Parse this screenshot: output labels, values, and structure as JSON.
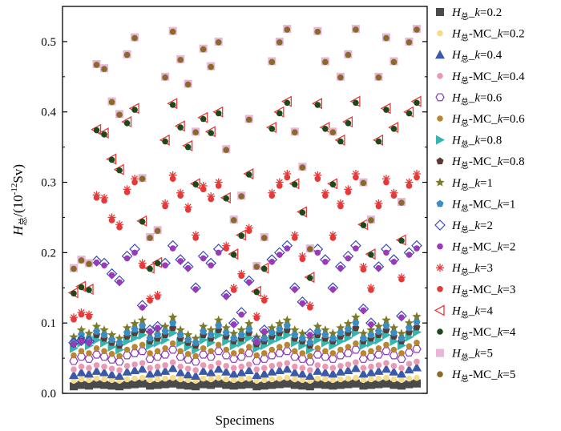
{
  "chart_data": {
    "type": "scatter",
    "title": "",
    "xlabel": "Specimens",
    "ylabel": {
      "main": "H",
      "sub": "总",
      "rest": "/(10",
      "exp": "-12",
      "unit": "Sv)"
    },
    "ylim": [
      0,
      0.55
    ],
    "yticks": [
      "0.0",
      "0.1",
      "0.2",
      "0.3",
      "0.4",
      "0.5"
    ],
    "ytick_values": [
      0,
      0.1,
      0.2,
      0.3,
      0.4,
      0.5
    ],
    "grid": false,
    "legend_position": "right",
    "specimen_count": 46,
    "series": [
      {
        "name": "H总_k=0.2",
        "label": {
          "pre": "H",
          "sub": "总",
          "post": "_",
          "k": "k",
          "val": "=0.2"
        },
        "marker": "square",
        "color": "#4a4a4a",
        "values": [
          0.01,
          0.012,
          0.011,
          0.013,
          0.012,
          0.011,
          0.01,
          0.012,
          0.013,
          0.014,
          0.011,
          0.012,
          0.013,
          0.014,
          0.012,
          0.011,
          0.01,
          0.013,
          0.012,
          0.014,
          0.012,
          0.011,
          0.012,
          0.013,
          0.01,
          0.011,
          0.012,
          0.013,
          0.014,
          0.012,
          0.011,
          0.01,
          0.013,
          0.012,
          0.011,
          0.012,
          0.013,
          0.014,
          0.011,
          0.012,
          0.013,
          0.014,
          0.012,
          0.011,
          0.013,
          0.014
        ]
      },
      {
        "name": "H总-MC_k=0.2",
        "label": {
          "pre": "H",
          "sub": "总",
          "post": "-MC_",
          "k": "k",
          "val": "=0.2"
        },
        "marker": "circle",
        "color": "#f5dc8c",
        "values": [
          0.018,
          0.02,
          0.019,
          0.021,
          0.02,
          0.019,
          0.018,
          0.02,
          0.021,
          0.022,
          0.019,
          0.02,
          0.021,
          0.022,
          0.02,
          0.019,
          0.018,
          0.021,
          0.02,
          0.022,
          0.02,
          0.019,
          0.02,
          0.021,
          0.018,
          0.019,
          0.02,
          0.021,
          0.022,
          0.02,
          0.019,
          0.018,
          0.021,
          0.02,
          0.019,
          0.02,
          0.021,
          0.022,
          0.019,
          0.02,
          0.021,
          0.022,
          0.02,
          0.019,
          0.021,
          0.022
        ]
      },
      {
        "name": "H总_k=0.4",
        "label": {
          "pre": "H",
          "sub": "总",
          "post": "_",
          "k": "k",
          "val": "=0.4"
        },
        "marker": "triangle-up",
        "color": "#3a5aa8",
        "values": [
          0.026,
          0.03,
          0.028,
          0.032,
          0.03,
          0.027,
          0.025,
          0.031,
          0.033,
          0.035,
          0.028,
          0.03,
          0.032,
          0.036,
          0.03,
          0.027,
          0.025,
          0.032,
          0.03,
          0.035,
          0.031,
          0.028,
          0.03,
          0.033,
          0.026,
          0.028,
          0.031,
          0.033,
          0.035,
          0.03,
          0.028,
          0.025,
          0.032,
          0.03,
          0.028,
          0.031,
          0.033,
          0.036,
          0.028,
          0.03,
          0.032,
          0.035,
          0.031,
          0.028,
          0.034,
          0.037
        ]
      },
      {
        "name": "H总-MC_k=0.4",
        "label": {
          "pre": "H",
          "sub": "总",
          "post": "-MC_",
          "k": "k",
          "val": "=0.4"
        },
        "marker": "circle",
        "color": "#e89ab5",
        "values": [
          0.034,
          0.038,
          0.036,
          0.04,
          0.038,
          0.035,
          0.033,
          0.039,
          0.041,
          0.043,
          0.036,
          0.038,
          0.04,
          0.044,
          0.038,
          0.035,
          0.033,
          0.04,
          0.038,
          0.043,
          0.039,
          0.036,
          0.038,
          0.041,
          0.034,
          0.036,
          0.039,
          0.041,
          0.043,
          0.038,
          0.036,
          0.033,
          0.04,
          0.038,
          0.036,
          0.039,
          0.041,
          0.044,
          0.036,
          0.038,
          0.04,
          0.043,
          0.039,
          0.036,
          0.042,
          0.045
        ]
      },
      {
        "name": "H总_k=0.6",
        "label": {
          "pre": "H",
          "sub": "总",
          "post": "_",
          "k": "k",
          "val": "=0.6"
        },
        "marker": "hexagon-open",
        "color": "#8a3ab8",
        "values": [
          0.046,
          0.052,
          0.049,
          0.055,
          0.052,
          0.048,
          0.045,
          0.054,
          0.057,
          0.06,
          0.049,
          0.052,
          0.055,
          0.062,
          0.052,
          0.048,
          0.045,
          0.055,
          0.052,
          0.06,
          0.054,
          0.049,
          0.052,
          0.057,
          0.046,
          0.049,
          0.054,
          0.057,
          0.06,
          0.052,
          0.049,
          0.045,
          0.055,
          0.052,
          0.049,
          0.054,
          0.057,
          0.062,
          0.049,
          0.052,
          0.055,
          0.06,
          0.054,
          0.049,
          0.058,
          0.063
        ]
      },
      {
        "name": "H总-MC_k=0.6",
        "label": {
          "pre": "H",
          "sub": "总",
          "post": "-MC_",
          "k": "k",
          "val": "=0.6"
        },
        "marker": "circle",
        "color": "#b8862e",
        "values": [
          0.054,
          0.06,
          0.057,
          0.064,
          0.06,
          0.056,
          0.053,
          0.062,
          0.066,
          0.069,
          0.057,
          0.06,
          0.064,
          0.071,
          0.06,
          0.056,
          0.053,
          0.064,
          0.06,
          0.069,
          0.062,
          0.057,
          0.06,
          0.066,
          0.054,
          0.057,
          0.062,
          0.066,
          0.069,
          0.06,
          0.057,
          0.053,
          0.064,
          0.06,
          0.057,
          0.062,
          0.066,
          0.071,
          0.057,
          0.06,
          0.064,
          0.069,
          0.062,
          0.057,
          0.067,
          0.072
        ]
      },
      {
        "name": "H总_k=0.8",
        "label": {
          "pre": "H",
          "sub": "总",
          "post": "_",
          "k": "k",
          "val": "=0.8"
        },
        "marker": "triangle-right",
        "color": "#36b5b0",
        "values": [
          0.064,
          0.072,
          0.068,
          0.076,
          0.072,
          0.066,
          0.062,
          0.074,
          0.079,
          0.083,
          0.068,
          0.072,
          0.076,
          0.086,
          0.072,
          0.066,
          0.062,
          0.076,
          0.072,
          0.083,
          0.074,
          0.068,
          0.072,
          0.079,
          0.064,
          0.068,
          0.074,
          0.079,
          0.083,
          0.072,
          0.068,
          0.062,
          0.076,
          0.072,
          0.068,
          0.074,
          0.079,
          0.086,
          0.068,
          0.072,
          0.076,
          0.083,
          0.074,
          0.068,
          0.08,
          0.087
        ]
      },
      {
        "name": "H总-MC_k=0.8",
        "label": {
          "pre": "H",
          "sub": "总",
          "post": "-MC_",
          "k": "k",
          "val": "=0.8"
        },
        "marker": "pentagon",
        "color": "#5a3a32",
        "values": [
          0.07,
          0.078,
          0.074,
          0.083,
          0.078,
          0.072,
          0.068,
          0.081,
          0.086,
          0.09,
          0.074,
          0.078,
          0.083,
          0.093,
          0.078,
          0.072,
          0.068,
          0.083,
          0.078,
          0.09,
          0.081,
          0.074,
          0.078,
          0.086,
          0.07,
          0.074,
          0.081,
          0.086,
          0.09,
          0.078,
          0.074,
          0.068,
          0.083,
          0.078,
          0.074,
          0.081,
          0.086,
          0.093,
          0.074,
          0.078,
          0.083,
          0.09,
          0.081,
          0.074,
          0.087,
          0.094
        ]
      },
      {
        "name": "H总_k=1",
        "label": {
          "pre": "H",
          "sub": "总",
          "post": "_",
          "k": "k",
          "val": "=1"
        },
        "marker": "star",
        "color": "#7a7a28",
        "values": [
          0.08,
          0.09,
          0.085,
          0.095,
          0.09,
          0.083,
          0.078,
          0.093,
          0.099,
          0.104,
          0.085,
          0.09,
          0.095,
          0.108,
          0.09,
          0.083,
          0.078,
          0.095,
          0.09,
          0.104,
          0.093,
          0.085,
          0.09,
          0.099,
          0.08,
          0.085,
          0.093,
          0.099,
          0.104,
          0.09,
          0.085,
          0.078,
          0.095,
          0.09,
          0.085,
          0.093,
          0.099,
          0.108,
          0.085,
          0.09,
          0.095,
          0.104,
          0.093,
          0.085,
          0.1,
          0.109
        ]
      },
      {
        "name": "H总-MC_k=1",
        "label": {
          "pre": "H",
          "sub": "总",
          "post": "-MC_",
          "k": "k",
          "val": "=1"
        },
        "marker": "pentagon",
        "color": "#3a8ec4",
        "values": [
          0.074,
          0.083,
          0.078,
          0.088,
          0.083,
          0.076,
          0.072,
          0.086,
          0.091,
          0.096,
          0.078,
          0.083,
          0.088,
          0.1,
          0.083,
          0.076,
          0.072,
          0.088,
          0.083,
          0.096,
          0.086,
          0.078,
          0.083,
          0.091,
          0.074,
          0.078,
          0.086,
          0.091,
          0.096,
          0.083,
          0.078,
          0.072,
          0.088,
          0.083,
          0.078,
          0.086,
          0.091,
          0.1,
          0.078,
          0.083,
          0.088,
          0.096,
          0.086,
          0.078,
          0.093,
          0.101
        ]
      },
      {
        "name": "H总_k=2",
        "label": {
          "pre": "H",
          "sub": "总",
          "post": "_",
          "k": "k",
          "val": "=2"
        },
        "marker": "diamond-open",
        "color": "#3a4ab8",
        "values": [
          0.072,
          0.075,
          0.074,
          0.188,
          0.185,
          0.17,
          0.16,
          0.195,
          0.205,
          0.125,
          0.09,
          0.095,
          0.185,
          0.21,
          0.19,
          0.18,
          0.15,
          0.195,
          0.185,
          0.205,
          0.14,
          0.1,
          0.115,
          0.16,
          0.075,
          0.09,
          0.19,
          0.2,
          0.21,
          0.15,
          0.13,
          0.085,
          0.205,
          0.19,
          0.15,
          0.18,
          0.195,
          0.21,
          0.12,
          0.1,
          0.18,
          0.205,
          0.19,
          0.11,
          0.2,
          0.21
        ]
      },
      {
        "name": "H总-MC_k=2",
        "label": {
          "pre": "H",
          "sub": "总",
          "post": "-MC_",
          "k": "k",
          "val": "=2"
        },
        "marker": "circle",
        "color": "#9a3ab8",
        "values": [
          0.07,
          0.074,
          0.072,
          0.186,
          0.182,
          0.168,
          0.158,
          0.192,
          0.2,
          0.122,
          0.088,
          0.093,
          0.182,
          0.206,
          0.188,
          0.178,
          0.148,
          0.192,
          0.182,
          0.2,
          0.138,
          0.098,
          0.112,
          0.158,
          0.073,
          0.088,
          0.187,
          0.197,
          0.206,
          0.148,
          0.128,
          0.083,
          0.2,
          0.187,
          0.148,
          0.178,
          0.192,
          0.206,
          0.118,
          0.098,
          0.178,
          0.2,
          0.187,
          0.108,
          0.197,
          0.206
        ]
      },
      {
        "name": "H总_k=3",
        "label": {
          "pre": "H",
          "sub": "总",
          "post": "_",
          "k": "k",
          "val": "=3"
        },
        "marker": "asterisk",
        "color": "#e63a3a",
        "values": [
          0.108,
          0.115,
          0.112,
          0.282,
          0.278,
          0.25,
          0.24,
          0.29,
          0.305,
          0.185,
          0.135,
          0.14,
          0.27,
          0.31,
          0.285,
          0.265,
          0.225,
          0.295,
          0.28,
          0.3,
          0.21,
          0.15,
          0.17,
          0.235,
          0.11,
          0.135,
          0.285,
          0.3,
          0.312,
          0.225,
          0.195,
          0.125,
          0.31,
          0.285,
          0.225,
          0.27,
          0.29,
          0.312,
          0.18,
          0.15,
          0.27,
          0.305,
          0.285,
          0.165,
          0.3,
          0.312
        ]
      },
      {
        "name": "H总-MC_k=3",
        "label": {
          "pre": "H",
          "sub": "总",
          "post": "-MC_",
          "k": "k",
          "val": "=3"
        },
        "marker": "circle",
        "color": "#e63a3a",
        "values": [
          0.105,
          0.112,
          0.109,
          0.278,
          0.274,
          0.246,
          0.236,
          0.286,
          0.3,
          0.181,
          0.132,
          0.137,
          0.266,
          0.305,
          0.281,
          0.261,
          0.221,
          0.29,
          0.276,
          0.295,
          0.206,
          0.147,
          0.167,
          0.231,
          0.107,
          0.132,
          0.281,
          0.295,
          0.307,
          0.221,
          0.191,
          0.122,
          0.305,
          0.281,
          0.221,
          0.266,
          0.286,
          0.307,
          0.176,
          0.147,
          0.266,
          0.3,
          0.281,
          0.162,
          0.295,
          0.307
        ]
      },
      {
        "name": "H总_k=4",
        "label": {
          "pre": "H",
          "sub": "总",
          "post": "_",
          "k": "k",
          "val": "=4"
        },
        "marker": "triangle-left-open",
        "color": "#e63a3a",
        "values": [
          0.143,
          0.152,
          0.148,
          0.375,
          0.37,
          0.333,
          0.318,
          0.386,
          0.405,
          0.245,
          0.178,
          0.186,
          0.36,
          0.412,
          0.38,
          0.352,
          0.298,
          0.392,
          0.372,
          0.4,
          0.278,
          0.198,
          0.225,
          0.312,
          0.145,
          0.178,
          0.378,
          0.4,
          0.415,
          0.298,
          0.258,
          0.165,
          0.412,
          0.378,
          0.298,
          0.36,
          0.386,
          0.415,
          0.24,
          0.198,
          0.36,
          0.405,
          0.378,
          0.218,
          0.4,
          0.415
        ]
      },
      {
        "name": "H总-MC_k=4",
        "label": {
          "pre": "H",
          "sub": "总",
          "post": "-MC_",
          "k": "k",
          "val": "=4"
        },
        "marker": "circle",
        "color": "#1a4a1a",
        "values": [
          0.142,
          0.151,
          0.147,
          0.374,
          0.368,
          0.332,
          0.317,
          0.384,
          0.403,
          0.244,
          0.177,
          0.185,
          0.358,
          0.41,
          0.378,
          0.35,
          0.297,
          0.39,
          0.37,
          0.398,
          0.277,
          0.197,
          0.224,
          0.311,
          0.144,
          0.177,
          0.376,
          0.398,
          0.413,
          0.297,
          0.257,
          0.164,
          0.41,
          0.376,
          0.297,
          0.358,
          0.384,
          0.413,
          0.239,
          0.197,
          0.358,
          0.403,
          0.376,
          0.217,
          0.398,
          0.413
        ]
      },
      {
        "name": "H总_k=5",
        "label": {
          "pre": "H",
          "sub": "总",
          "post": "_",
          "k": "k",
          "val": "=5"
        },
        "marker": "square",
        "color": "#e8b4d8",
        "values": [
          0.178,
          0.19,
          0.185,
          0.468,
          0.462,
          0.415,
          0.397,
          0.482,
          0.506,
          0.306,
          0.222,
          0.232,
          0.45,
          0.515,
          0.475,
          0.44,
          0.372,
          0.49,
          0.465,
          0.5,
          0.347,
          0.247,
          0.281,
          0.39,
          0.181,
          0.222,
          0.472,
          0.5,
          0.518,
          0.372,
          0.322,
          0.206,
          0.515,
          0.472,
          0.372,
          0.45,
          0.482,
          0.518,
          0.3,
          0.247,
          0.45,
          0.506,
          0.472,
          0.272,
          0.5,
          0.518
        ]
      },
      {
        "name": "H总-MC_k=5",
        "label": {
          "pre": "H",
          "sub": "总",
          "post": "-MC_",
          "k": "k",
          "val": "=5"
        },
        "marker": "circle",
        "color": "#8a6a2a",
        "values": [
          0.177,
          0.189,
          0.184,
          0.467,
          0.461,
          0.414,
          0.396,
          0.481,
          0.505,
          0.305,
          0.221,
          0.231,
          0.449,
          0.514,
          0.474,
          0.439,
          0.371,
          0.489,
          0.464,
          0.499,
          0.346,
          0.246,
          0.28,
          0.389,
          0.18,
          0.221,
          0.471,
          0.499,
          0.517,
          0.371,
          0.321,
          0.205,
          0.514,
          0.471,
          0.371,
          0.449,
          0.481,
          0.517,
          0.299,
          0.246,
          0.449,
          0.505,
          0.471,
          0.271,
          0.499,
          0.517
        ]
      }
    ]
  }
}
